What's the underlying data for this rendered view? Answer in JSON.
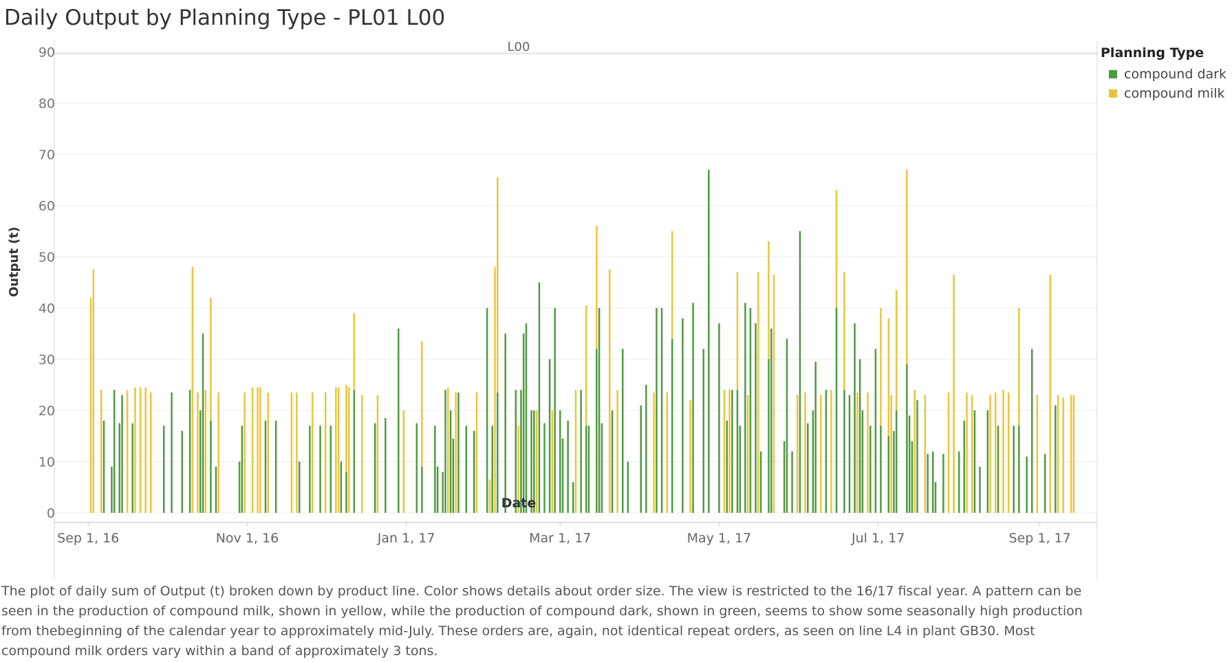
{
  "title": "Daily Output by Planning Type - PL01 L00",
  "legend": {
    "title": "Planning Type",
    "items": [
      {
        "label": "compound dark",
        "color": "#4e9a41"
      },
      {
        "label": "compound milk",
        "color": "#ecc43b"
      }
    ]
  },
  "caption": "The plot of daily sum of Output (t) broken down by product line.  Color shows details about order size. The view is restricted to the 16/17 fiscal year. A pattern can be seen in the production of compound milk, shown in yellow, while the production of compound dark, shown in green, seems to show some seasonally high production from thebeginning of the calendar year to approximately mid-July. These orders are, again, not identical repeat orders, as seen on line L4 in plant GB30. Most compound  milk orders vary within a band of approximately 3 tons.",
  "chart_data": {
    "type": "bar",
    "stacked": true,
    "panel_header": "L00",
    "xlabel": "Date",
    "ylabel": "Output (t)",
    "ylim": [
      0,
      90
    ],
    "yticks": [
      0,
      10,
      20,
      30,
      40,
      50,
      60,
      70,
      80,
      90
    ],
    "xticks": [
      "2016-09-01",
      "2016-11-01",
      "2017-01-01",
      "2017-03-01",
      "2017-05-01",
      "2017-07-01",
      "2017-09-01"
    ],
    "xtick_labels": [
      "Sep 1, 16",
      "Nov 1, 16",
      "Jan 1, 17",
      "Mar 1, 17",
      "May 1, 17",
      "Jul 1, 17",
      "Sep 1, 17"
    ],
    "xlim": [
      "2016-08-19",
      "2017-09-23"
    ],
    "grid": true,
    "series": [
      {
        "name": "compound dark",
        "color": "#4e9a41",
        "points": [
          [
            "2016-09-07",
            18
          ],
          [
            "2016-09-10",
            9
          ],
          [
            "2016-09-11",
            24
          ],
          [
            "2016-09-13",
            17.5
          ],
          [
            "2016-09-14",
            23
          ],
          [
            "2016-09-18",
            17.5
          ],
          [
            "2016-09-30",
            17
          ],
          [
            "2016-10-03",
            23.5
          ],
          [
            "2016-10-07",
            16
          ],
          [
            "2016-10-10",
            24
          ],
          [
            "2016-10-14",
            20
          ],
          [
            "2016-10-15",
            35
          ],
          [
            "2016-10-18",
            18
          ],
          [
            "2016-10-20",
            9
          ],
          [
            "2016-10-29",
            10
          ],
          [
            "2016-10-30",
            17
          ],
          [
            "2016-11-08",
            18
          ],
          [
            "2016-11-12",
            18
          ],
          [
            "2016-11-21",
            10
          ],
          [
            "2016-11-25",
            17
          ],
          [
            "2016-11-29",
            17
          ],
          [
            "2016-12-03",
            17
          ],
          [
            "2016-12-07",
            10
          ],
          [
            "2016-12-09",
            8
          ],
          [
            "2016-12-12",
            24
          ],
          [
            "2016-12-20",
            17.5
          ],
          [
            "2016-12-24",
            18.5
          ],
          [
            "2016-12-29",
            36
          ],
          [
            "2017-01-05",
            17.5
          ],
          [
            "2017-01-07",
            9
          ],
          [
            "2017-01-12",
            17
          ],
          [
            "2017-01-13",
            9
          ],
          [
            "2017-01-15",
            8
          ],
          [
            "2017-01-16",
            24
          ],
          [
            "2017-01-18",
            20
          ],
          [
            "2017-01-19",
            14.5
          ],
          [
            "2017-01-21",
            23.5
          ],
          [
            "2017-01-24",
            17
          ],
          [
            "2017-01-27",
            16
          ],
          [
            "2017-02-01",
            40
          ],
          [
            "2017-02-03",
            17
          ],
          [
            "2017-02-05",
            23.5
          ],
          [
            "2017-02-08",
            35
          ],
          [
            "2017-02-12",
            24
          ],
          [
            "2017-02-14",
            24
          ],
          [
            "2017-02-15",
            35
          ],
          [
            "2017-02-16",
            37
          ],
          [
            "2017-02-18",
            20
          ],
          [
            "2017-02-19",
            20
          ],
          [
            "2017-02-21",
            45
          ],
          [
            "2017-02-23",
            17.5
          ],
          [
            "2017-02-25",
            30
          ],
          [
            "2017-02-27",
            40
          ],
          [
            "2017-03-01",
            20
          ],
          [
            "2017-03-02",
            14.5
          ],
          [
            "2017-03-04",
            18
          ],
          [
            "2017-03-06",
            6
          ],
          [
            "2017-03-09",
            24
          ],
          [
            "2017-03-11",
            17
          ],
          [
            "2017-03-12",
            17
          ],
          [
            "2017-03-15",
            32
          ],
          [
            "2017-03-16",
            40
          ],
          [
            "2017-03-17",
            17.5
          ],
          [
            "2017-03-21",
            20
          ],
          [
            "2017-03-25",
            32
          ],
          [
            "2017-03-27",
            10
          ],
          [
            "2017-04-01",
            21
          ],
          [
            "2017-04-03",
            25
          ],
          [
            "2017-04-07",
            40
          ],
          [
            "2017-04-09",
            40
          ],
          [
            "2017-04-13",
            34
          ],
          [
            "2017-04-17",
            38
          ],
          [
            "2017-04-21",
            41
          ],
          [
            "2017-04-25",
            32
          ],
          [
            "2017-04-27",
            67
          ],
          [
            "2017-05-01",
            37
          ],
          [
            "2017-05-04",
            18
          ],
          [
            "2017-05-06",
            24
          ],
          [
            "2017-05-08",
            24
          ],
          [
            "2017-05-09",
            17
          ],
          [
            "2017-05-11",
            41
          ],
          [
            "2017-05-13",
            40
          ],
          [
            "2017-05-15",
            37
          ],
          [
            "2017-05-17",
            12
          ],
          [
            "2017-05-20",
            30
          ],
          [
            "2017-05-21",
            36
          ],
          [
            "2017-05-26",
            14
          ],
          [
            "2017-05-27",
            34
          ],
          [
            "2017-05-29",
            12
          ],
          [
            "2017-06-01",
            55
          ],
          [
            "2017-06-04",
            17.5
          ],
          [
            "2017-06-06",
            20
          ],
          [
            "2017-06-07",
            29.5
          ],
          [
            "2017-06-11",
            24
          ],
          [
            "2017-06-15",
            40
          ],
          [
            "2017-06-18",
            24
          ],
          [
            "2017-06-20",
            23
          ],
          [
            "2017-06-22",
            37
          ],
          [
            "2017-06-24",
            30
          ],
          [
            "2017-06-25",
            20
          ],
          [
            "2017-06-28",
            17
          ],
          [
            "2017-06-30",
            32
          ],
          [
            "2017-07-02",
            17
          ],
          [
            "2017-07-05",
            15
          ],
          [
            "2017-07-07",
            16
          ],
          [
            "2017-07-08",
            20
          ],
          [
            "2017-07-12",
            29
          ],
          [
            "2017-07-13",
            19
          ],
          [
            "2017-07-14",
            14
          ],
          [
            "2017-07-16",
            22
          ],
          [
            "2017-07-20",
            11.5
          ],
          [
            "2017-07-22",
            12
          ],
          [
            "2017-07-23",
            6
          ],
          [
            "2017-07-26",
            11.5
          ],
          [
            "2017-08-01",
            12
          ],
          [
            "2017-08-03",
            18
          ],
          [
            "2017-08-07",
            20
          ],
          [
            "2017-08-09",
            9
          ],
          [
            "2017-08-12",
            20
          ],
          [
            "2017-08-16",
            17
          ],
          [
            "2017-08-22",
            17
          ],
          [
            "2017-08-24",
            17
          ],
          [
            "2017-08-27",
            11
          ],
          [
            "2017-08-29",
            32
          ],
          [
            "2017-09-03",
            11.5
          ],
          [
            "2017-09-07",
            21
          ]
        ]
      },
      {
        "name": "compound milk",
        "color": "#ecc43b",
        "points": [
          [
            "2016-09-02",
            42
          ],
          [
            "2016-09-03",
            47.5
          ],
          [
            "2016-09-06",
            24
          ],
          [
            "2016-09-16",
            24
          ],
          [
            "2016-09-19",
            24.5
          ],
          [
            "2016-09-21",
            24.5
          ],
          [
            "2016-09-23",
            24.5
          ],
          [
            "2016-09-25",
            23.5
          ],
          [
            "2016-10-11",
            48
          ],
          [
            "2016-10-13",
            23.5
          ],
          [
            "2016-10-16",
            24
          ],
          [
            "2016-10-18",
            24
          ],
          [
            "2016-10-21",
            23.5
          ],
          [
            "2016-10-31",
            23.5
          ],
          [
            "2016-11-03",
            24.5
          ],
          [
            "2016-11-05",
            24.5
          ],
          [
            "2016-11-06",
            24.5
          ],
          [
            "2016-11-09",
            23.5
          ],
          [
            "2016-11-18",
            23.5
          ],
          [
            "2016-11-20",
            23.5
          ],
          [
            "2016-11-26",
            23.5
          ],
          [
            "2016-12-01",
            23.5
          ],
          [
            "2016-12-05",
            24.5
          ],
          [
            "2016-12-06",
            24.5
          ],
          [
            "2016-12-09",
            17
          ],
          [
            "2016-12-10",
            24.5
          ],
          [
            "2016-12-12",
            15
          ],
          [
            "2016-12-15",
            23
          ],
          [
            "2016-12-21",
            23
          ],
          [
            "2016-12-31",
            20
          ],
          [
            "2017-01-07",
            24.5
          ],
          [
            "2017-01-17",
            24.5
          ],
          [
            "2017-01-20",
            23.5
          ],
          [
            "2017-01-28",
            23.5
          ],
          [
            "2017-02-02",
            6.5
          ],
          [
            "2017-02-04",
            48
          ],
          [
            "2017-02-05",
            42
          ],
          [
            "2017-02-13",
            17
          ],
          [
            "2017-02-20",
            20
          ],
          [
            "2017-02-26",
            20
          ],
          [
            "2017-03-07",
            24
          ],
          [
            "2017-03-11",
            23.5
          ],
          [
            "2017-03-15",
            24
          ],
          [
            "2017-03-20",
            47.5
          ],
          [
            "2017-03-23",
            24
          ],
          [
            "2017-04-06",
            23.5
          ],
          [
            "2017-04-11",
            23.5
          ],
          [
            "2017-04-13",
            21
          ],
          [
            "2017-04-20",
            22
          ],
          [
            "2017-05-03",
            24
          ],
          [
            "2017-05-05",
            24
          ],
          [
            "2017-05-08",
            23
          ],
          [
            "2017-05-12",
            23
          ],
          [
            "2017-05-16",
            47
          ],
          [
            "2017-05-20",
            23
          ],
          [
            "2017-05-22",
            46.5
          ],
          [
            "2017-05-31",
            23
          ],
          [
            "2017-06-03",
            23.5
          ],
          [
            "2017-06-09",
            23
          ],
          [
            "2017-06-13",
            24
          ],
          [
            "2017-06-15",
            23
          ],
          [
            "2017-06-18",
            23
          ],
          [
            "2017-06-23",
            23.5
          ],
          [
            "2017-06-27",
            23.5
          ],
          [
            "2017-07-02",
            23
          ],
          [
            "2017-07-05",
            23
          ],
          [
            "2017-07-06",
            23
          ],
          [
            "2017-07-08",
            23.5
          ],
          [
            "2017-07-12",
            38
          ],
          [
            "2017-07-15",
            24
          ],
          [
            "2017-07-19",
            23
          ],
          [
            "2017-07-28",
            23.5
          ],
          [
            "2017-07-30",
            46.5
          ],
          [
            "2017-08-04",
            23.5
          ],
          [
            "2017-08-06",
            23
          ],
          [
            "2017-08-13",
            23
          ],
          [
            "2017-08-15",
            23.5
          ],
          [
            "2017-08-18",
            24
          ],
          [
            "2017-08-20",
            23.5
          ],
          [
            "2017-08-24",
            23
          ],
          [
            "2017-08-31",
            23
          ],
          [
            "2017-09-05",
            46.5
          ],
          [
            "2017-09-08",
            23
          ],
          [
            "2017-09-10",
            22.5
          ],
          [
            "2017-09-13",
            23
          ],
          [
            "2017-09-14",
            23
          ]
        ]
      }
    ]
  }
}
